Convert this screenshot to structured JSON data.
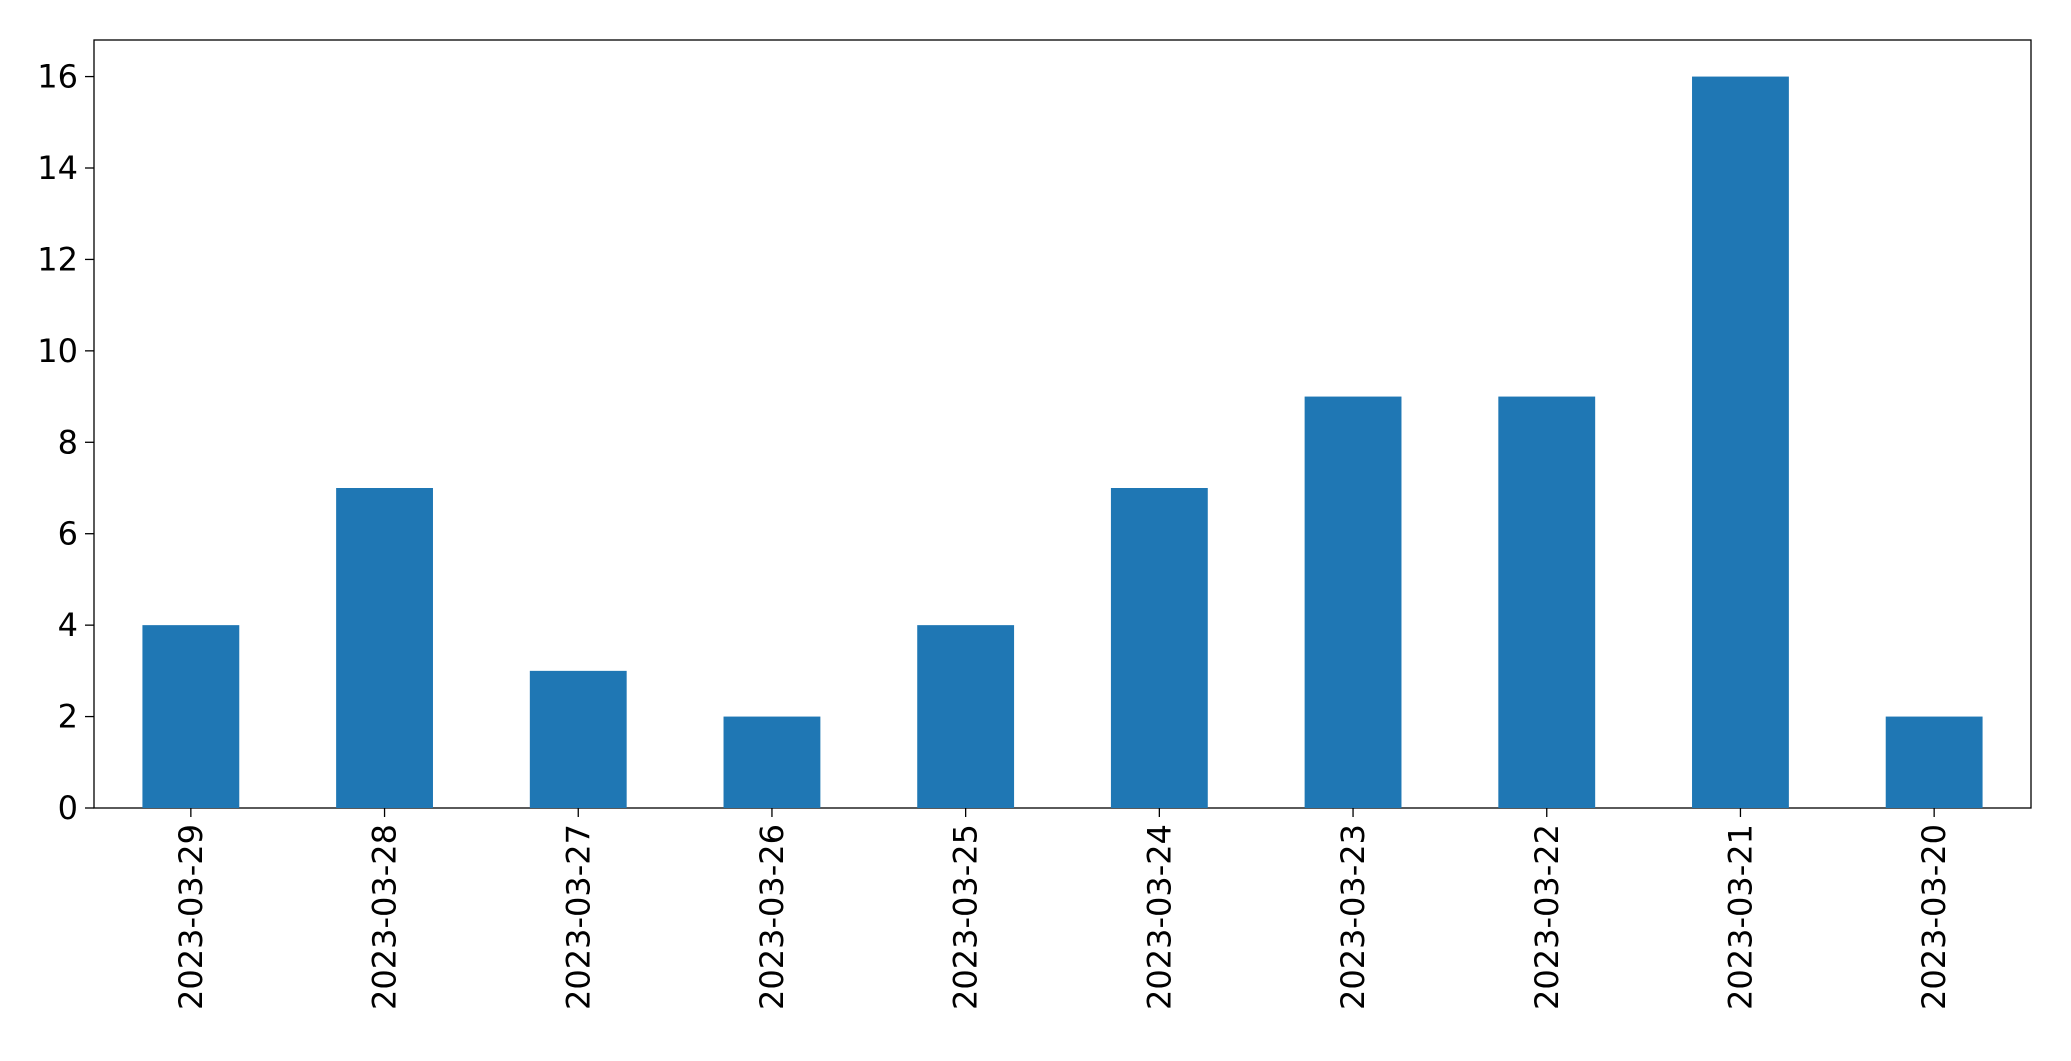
{
  "chart_data": {
    "type": "bar",
    "categories": [
      "2023-03-29",
      "2023-03-28",
      "2023-03-27",
      "2023-03-26",
      "2023-03-25",
      "2023-03-24",
      "2023-03-23",
      "2023-03-22",
      "2023-03-21",
      "2023-03-20"
    ],
    "values": [
      4,
      7,
      3,
      2,
      4,
      7,
      9,
      9,
      16,
      2
    ],
    "color": "#1f77b4",
    "ylim": [
      0,
      16.8
    ],
    "yticks": [
      0,
      2,
      4,
      6,
      8,
      10,
      12,
      14,
      16
    ],
    "grid": false
  }
}
